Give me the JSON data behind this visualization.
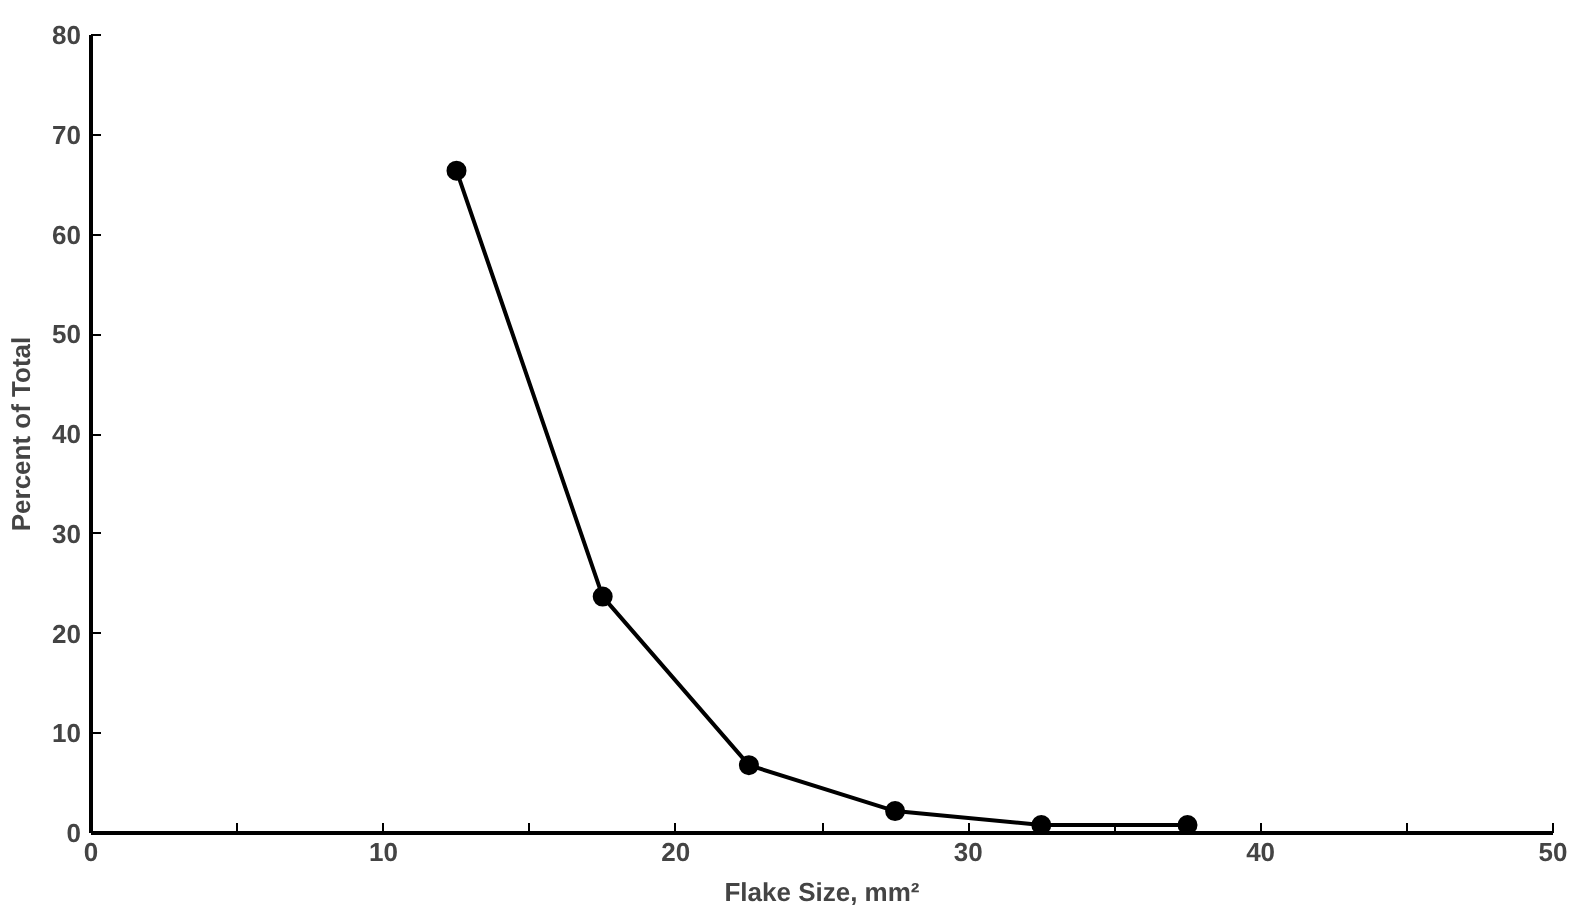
{
  "chart_data": {
    "type": "line",
    "xlabel": "Flake Size, mm²",
    "ylabel": "Percent of Total",
    "x": [
      12.5,
      17.5,
      22.5,
      27.5,
      32.5,
      37.5
    ],
    "series": [
      {
        "color": "#000000",
        "values": [
          66.4,
          23.7,
          6.8,
          2.2,
          0.8,
          0.8
        ]
      }
    ],
    "xlim": [
      0,
      50
    ],
    "ylim": [
      0,
      80
    ],
    "xticks": [
      0,
      {
        "value": 5,
        "label": null
      },
      10,
      {
        "value": 15,
        "label": null
      },
      20,
      {
        "value": 25,
        "label": null
      },
      30,
      {
        "value": 35,
        "label": null
      },
      40,
      {
        "value": 45,
        "label": null
      },
      50
    ],
    "yticks": [
      0,
      10,
      20,
      30,
      40,
      50,
      60,
      70,
      80
    ],
    "grid": false,
    "marker": "circle",
    "line_style": "solid"
  }
}
